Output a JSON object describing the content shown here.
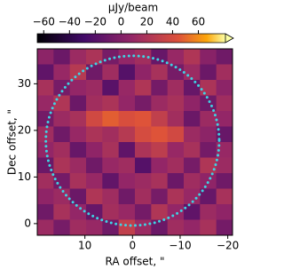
{
  "chart_data": {
    "type": "heatmap",
    "colorbar_label": "μJy/beam",
    "xlabel": "RA offset, \"",
    "ylabel": "Dec offset, \"",
    "colormap": "inferno",
    "xlim": [
      20,
      -21
    ],
    "ylim": [
      -2.5,
      37.5
    ],
    "clim": [
      -65,
      81
    ],
    "xticks": [
      10,
      0,
      {
        "value": -10,
        "label": "−10"
      },
      {
        "value": -20,
        "label": "−20"
      }
    ],
    "yticks": [
      0,
      10,
      20,
      30
    ],
    "cticks": [
      {
        "value": -60,
        "label": "−60"
      },
      {
        "value": -40,
        "label": "−40"
      },
      {
        "value": -20,
        "label": "−20"
      },
      0,
      20,
      40,
      60
    ],
    "ring": {
      "center": [
        0,
        17.8
      ],
      "radius": 18.2,
      "color": "#3fd3e3"
    },
    "z": [
      [
        5,
        -10,
        12,
        20,
        -5,
        8,
        15,
        -12,
        10,
        22,
        3,
        -8
      ],
      [
        -15,
        10,
        25,
        -8,
        14,
        -20,
        6,
        18,
        -5,
        12,
        -10,
        15
      ],
      [
        18,
        -5,
        8,
        12,
        -18,
        10,
        22,
        -6,
        14,
        -12,
        20,
        5
      ],
      [
        10,
        22,
        -10,
        15,
        20,
        8,
        -5,
        12,
        18,
        6,
        -8,
        14
      ],
      [
        -6,
        12,
        18,
        38,
        48,
        42,
        45,
        30,
        15,
        -10,
        12,
        8
      ],
      [
        14,
        -8,
        10,
        20,
        15,
        25,
        40,
        45,
        38,
        12,
        5,
        -12
      ],
      [
        8,
        15,
        -12,
        6,
        18,
        -15,
        20,
        28,
        10,
        18,
        -6,
        10
      ],
      [
        -10,
        20,
        12,
        -8,
        10,
        14,
        -20,
        8,
        15,
        -5,
        22,
        12
      ],
      [
        15,
        -6,
        18,
        10,
        -14,
        8,
        12,
        18,
        -10,
        14,
        6,
        -8
      ],
      [
        6,
        12,
        -10,
        22,
        14,
        -8,
        15,
        -5,
        20,
        10,
        -12,
        18
      ],
      [
        -8,
        18,
        8,
        -12,
        16,
        10,
        -6,
        22,
        8,
        -15,
        12,
        6
      ],
      [
        12,
        -5,
        14,
        10,
        -8,
        30,
        12,
        -10,
        14,
        8,
        18,
        -6
      ]
    ]
  }
}
